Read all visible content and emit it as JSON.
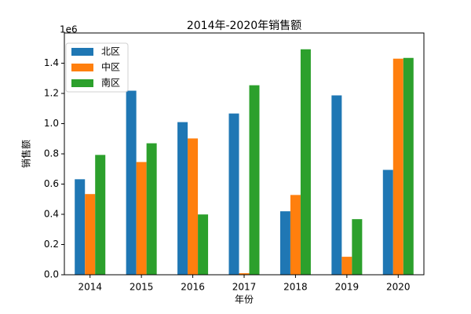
{
  "chart_data": {
    "type": "bar",
    "title": "2014年-2020年销售额",
    "xlabel": "年份",
    "ylabel": "销售额",
    "y_offset_label": "1e6",
    "categories": [
      "2014",
      "2015",
      "2016",
      "2017",
      "2018",
      "2019",
      "2020"
    ],
    "series": [
      {
        "name": "北区",
        "color": "#1f77b4",
        "values": [
          632000,
          1218000,
          1010000,
          1067000,
          420000,
          1187000,
          694000
        ]
      },
      {
        "name": "中区",
        "color": "#ff7f0e",
        "values": [
          534000,
          746000,
          902000,
          10000,
          528000,
          119000,
          1430000
        ]
      },
      {
        "name": "南区",
        "color": "#2ca02c",
        "values": [
          793000,
          870000,
          399000,
          1254000,
          1492000,
          368000,
          1435000
        ]
      }
    ],
    "ylim": [
      0,
      1600000
    ],
    "yticks": [
      {
        "value": 0,
        "label": "0.0"
      },
      {
        "value": 200000,
        "label": "0.2"
      },
      {
        "value": 400000,
        "label": "0.4"
      },
      {
        "value": 600000,
        "label": "0.6"
      },
      {
        "value": 800000,
        "label": "0.8"
      },
      {
        "value": 1000000,
        "label": "1.0"
      },
      {
        "value": 1200000,
        "label": "1.2"
      },
      {
        "value": 1400000,
        "label": "1.4"
      }
    ],
    "grid": false,
    "legend": "upper left"
  }
}
